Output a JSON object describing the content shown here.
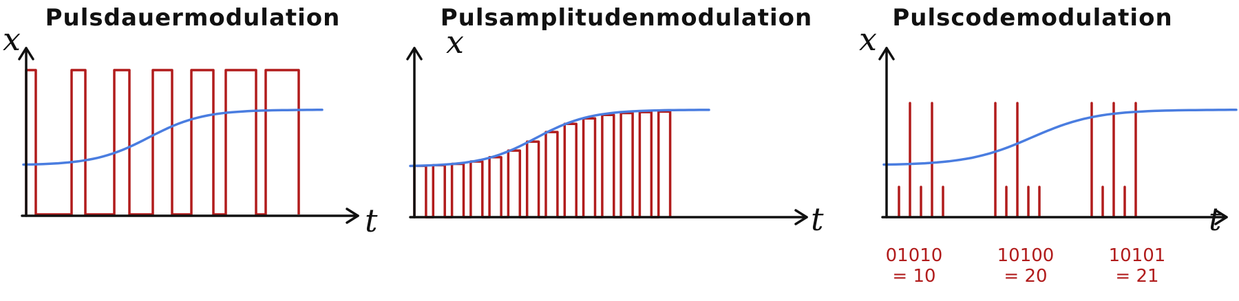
{
  "panels": [
    {
      "title": "Pulsdauermodulation",
      "y_axis_label": "x",
      "x_axis_label": "t"
    },
    {
      "title": "Pulsamplitudenmodulation",
      "y_axis_label": "x",
      "x_axis_label": "t"
    },
    {
      "title": "Pulscodemodulation",
      "y_axis_label": "x",
      "x_axis_label": "t",
      "codes": [
        {
          "bits": "01010",
          "value": "= 10"
        },
        {
          "bits": "10100",
          "value": "= 20"
        },
        {
          "bits": "10101",
          "value": "= 21"
        }
      ]
    }
  ],
  "colors": {
    "axis": "#111111",
    "signal": "#4a7de0",
    "pulse": "#b11c1c"
  },
  "signal_shape": "s-curve rising from low to high level",
  "pdm_pulse_widths": [
    0.22,
    0.38,
    0.42,
    0.58,
    0.62,
    0.78,
    0.9
  ],
  "pam_pulse_heights": [
    0.33,
    0.33,
    0.3,
    0.33,
    0.36,
    0.42,
    0.52,
    0.58,
    0.64,
    0.66,
    0.68,
    0.7,
    0.72,
    0.74
  ],
  "pcm_bits": [
    "01010",
    "10100",
    "10101"
  ]
}
